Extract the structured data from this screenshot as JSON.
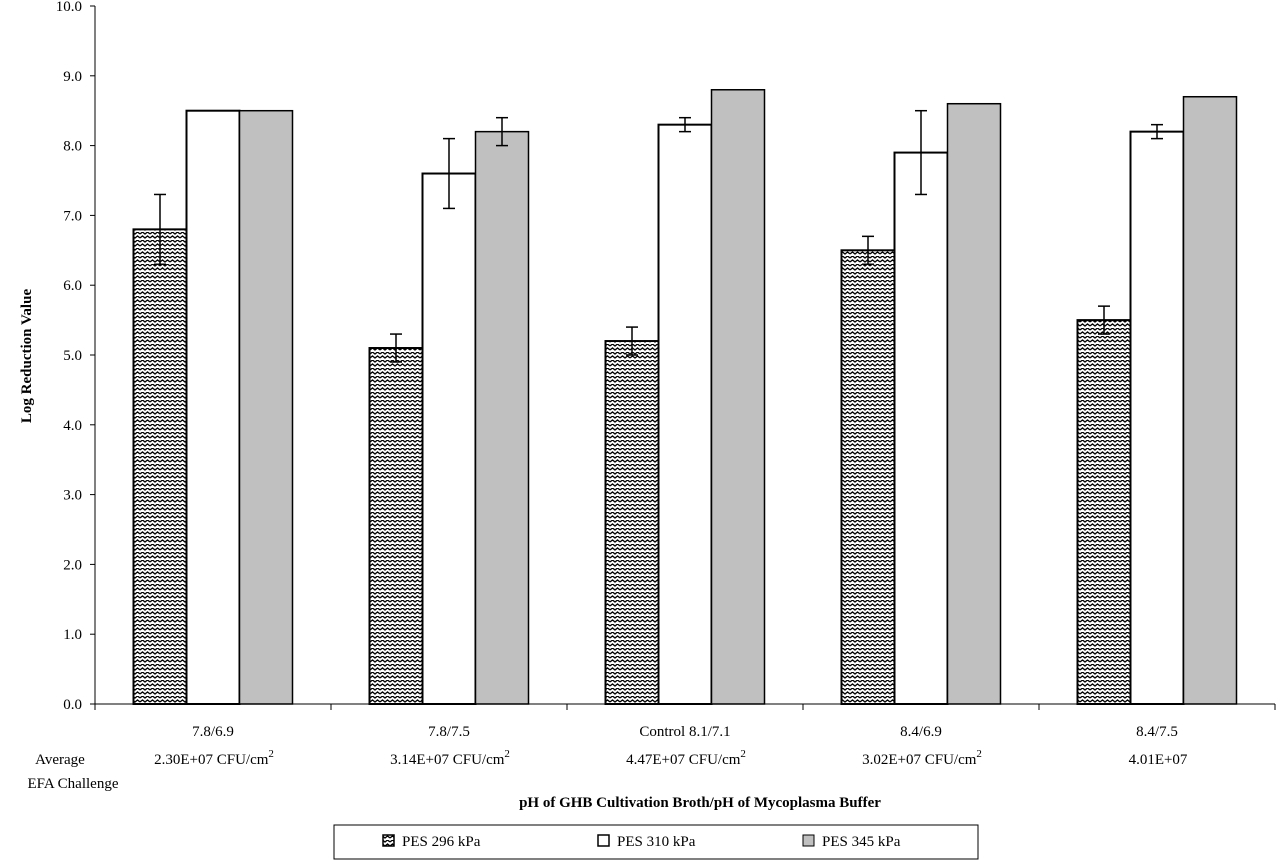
{
  "chart_data": {
    "type": "bar",
    "ylabel": "Log Reduction Value",
    "xlabel": "pH of GHB Cultivation Broth/pH of Mycoplasma Buffer",
    "ylim": [
      0,
      10
    ],
    "yticks": [
      "0.0",
      "1.0",
      "2.0",
      "3.0",
      "4.0",
      "5.0",
      "6.0",
      "7.0",
      "8.0",
      "9.0",
      "10.0"
    ],
    "grid": false,
    "legend_position": "bottom",
    "categories": [
      "7.8/6.9",
      "7.8/7.5",
      "Control 8.1/7.1",
      "8.4/6.9",
      "8.4/7.5"
    ],
    "challenge_label": [
      "Average",
      "EFA Challenge"
    ],
    "challenge_values": [
      "2.30E+07",
      "3.14E+07",
      "4.47E+07",
      "3.02E+07",
      "4.01E+07"
    ],
    "challenge_units": [
      "CFU/cm",
      "CFU/cm",
      "CFU/cm",
      "CFU/cm",
      ""
    ],
    "challenge_unit_superscript": "2",
    "series": [
      {
        "name": "PES 296 kPa",
        "pattern": "zigzag",
        "values": [
          6.8,
          5.1,
          5.2,
          6.5,
          5.5
        ],
        "error": [
          0.5,
          0.2,
          0.2,
          0.2,
          0.2
        ]
      },
      {
        "name": "PES 310 kPa",
        "pattern": "white",
        "values": [
          8.5,
          7.6,
          8.3,
          7.9,
          8.2
        ],
        "error": [
          null,
          0.5,
          0.1,
          0.6,
          0.1
        ]
      },
      {
        "name": "PES 345 kPa",
        "pattern": "gray",
        "values": [
          8.5,
          8.2,
          8.8,
          8.6,
          8.7
        ],
        "error": [
          null,
          0.2,
          null,
          null,
          null
        ]
      }
    ],
    "colors": {
      "gray": "#c0c0c0",
      "white": "#ffffff",
      "outline": "#000000"
    }
  }
}
